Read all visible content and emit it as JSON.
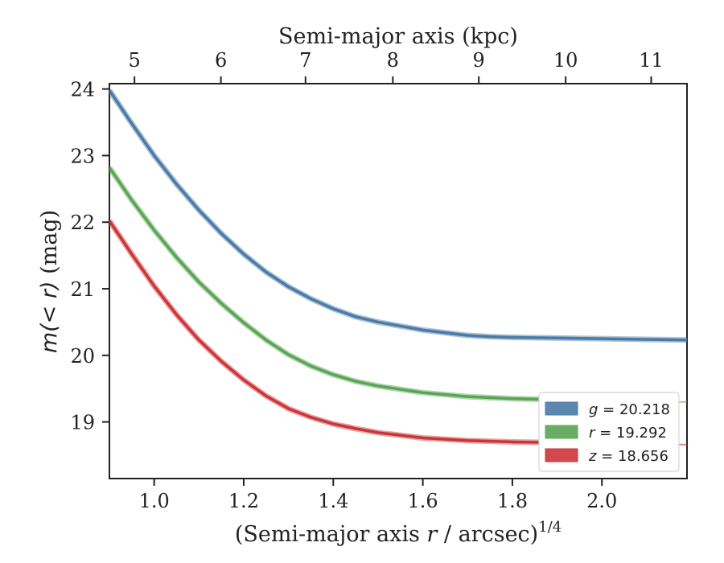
{
  "chart_data": {
    "type": "line",
    "xlabel_bottom": "(Semi-major axis r / arcsec)",
    "xlabel_bottom_italic": "r",
    "xlabel_bottom_prefix": "(Semi-major axis ",
    "xlabel_bottom_suffix": " / arcsec)",
    "xlabel_bottom_exponent": "1/4",
    "xlabel_top": "Semi-major axis (kpc)",
    "ylabel": "m(< r) (mag)",
    "ylabel_italic": "m(< r)",
    "ylabel_unit": " (mag)",
    "xlim": [
      0.9,
      2.19
    ],
    "ylim": [
      24.08,
      18.15
    ],
    "y_inverted": true,
    "x_ticks": [
      "1.0",
      "1.2",
      "1.4",
      "1.6",
      "1.8",
      "2.0"
    ],
    "x_tick_values": [
      1.0,
      1.2,
      1.4,
      1.6,
      1.8,
      2.0
    ],
    "y_ticks": [
      "19",
      "20",
      "21",
      "22",
      "23",
      "24"
    ],
    "y_tick_values": [
      19,
      20,
      21,
      22,
      23,
      24
    ],
    "top_ticks": [
      "5",
      "6",
      "7",
      "8",
      "9",
      "10",
      "11"
    ],
    "top_tick_values": [
      5,
      6,
      7,
      8,
      9,
      10,
      11
    ],
    "top_tick_x_positions": [
      0.956,
      1.149,
      1.338,
      1.533,
      1.725,
      1.919,
      2.11
    ],
    "legend_placement": "lower-right",
    "grid": false,
    "series": [
      {
        "name": "g = 20.218",
        "band": "g",
        "total": "20.218",
        "color": "#4a7ba7",
        "x": [
          0.9,
          0.95,
          1.0,
          1.05,
          1.1,
          1.15,
          1.2,
          1.25,
          1.3,
          1.35,
          1.4,
          1.45,
          1.5,
          1.6,
          1.7,
          1.75,
          1.8,
          1.9,
          2.0,
          2.1,
          2.19
        ],
        "y": [
          23.98,
          23.48,
          23.0,
          22.57,
          22.18,
          21.83,
          21.52,
          21.25,
          21.03,
          20.85,
          20.7,
          20.58,
          20.5,
          20.38,
          20.3,
          20.28,
          20.27,
          20.26,
          20.25,
          20.24,
          20.23
        ],
        "band_x_end": 2.19,
        "extension_x_end": 2.19
      },
      {
        "name": "r = 19.292",
        "band": "r",
        "total": "19.292",
        "color": "#5aa554",
        "x": [
          0.9,
          0.95,
          1.0,
          1.05,
          1.1,
          1.15,
          1.2,
          1.25,
          1.3,
          1.35,
          1.4,
          1.45,
          1.5,
          1.6,
          1.7,
          1.8,
          1.87,
          1.95,
          2.02,
          2.1
        ],
        "y": [
          22.82,
          22.33,
          21.88,
          21.47,
          21.1,
          20.78,
          20.49,
          20.23,
          20.01,
          19.84,
          19.71,
          19.61,
          19.54,
          19.44,
          19.38,
          19.35,
          19.34,
          19.35,
          19.36,
          19.34
        ],
        "band_x_end": 2.1,
        "extension_x_end": 2.19,
        "extension_y": 19.3
      },
      {
        "name": "z = 18.656",
        "band": "z",
        "total": "18.656",
        "color": "#cc3538",
        "x": [
          0.9,
          0.95,
          1.0,
          1.05,
          1.1,
          1.15,
          1.2,
          1.25,
          1.3,
          1.35,
          1.4,
          1.45,
          1.5,
          1.6,
          1.7,
          1.8,
          1.9,
          1.95,
          2.02,
          2.1
        ],
        "y": [
          22.02,
          21.52,
          21.04,
          20.61,
          20.23,
          19.91,
          19.63,
          19.39,
          19.2,
          19.07,
          18.97,
          18.9,
          18.84,
          18.76,
          18.72,
          18.7,
          18.69,
          18.69,
          18.66,
          18.68
        ],
        "band_x_end": 2.1,
        "extension_x_end": 2.19,
        "extension_y": 18.66
      }
    ]
  }
}
